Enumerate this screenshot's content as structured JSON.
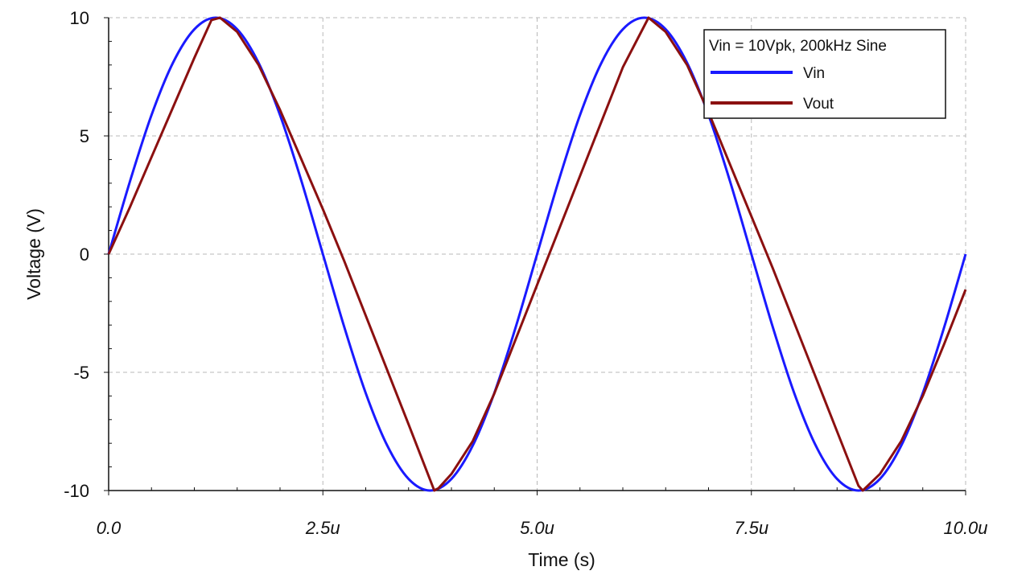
{
  "chart_data": {
    "type": "line",
    "xlabel": "Time (s)",
    "ylabel": "Voltage (V)",
    "xlim": [
      0,
      10
    ],
    "ylim": [
      -10,
      10
    ],
    "x_unit": "us",
    "x_ticks": [
      {
        "value": 0,
        "label": "0.0"
      },
      {
        "value": 2.5,
        "label": "2.5u"
      },
      {
        "value": 5,
        "label": "5.0u"
      },
      {
        "value": 7.5,
        "label": "7.5u"
      },
      {
        "value": 10,
        "label": "10.0u"
      }
    ],
    "y_ticks": [
      {
        "value": 10,
        "label": "10"
      },
      {
        "value": 5,
        "label": "5"
      },
      {
        "value": 0,
        "label": "0"
      },
      {
        "value": -5,
        "label": "-5"
      },
      {
        "value": -10,
        "label": "-10"
      }
    ],
    "grid": true,
    "legend": {
      "position": "top-right",
      "title": "Vin = 10Vpk, 200kHz Sine"
    },
    "series": [
      {
        "name": "Vin",
        "color": "#1a1aff",
        "x": [
          0,
          0.25,
          0.5,
          0.75,
          1.0,
          1.25,
          1.5,
          1.75,
          2.0,
          2.25,
          2.5,
          2.75,
          3.0,
          3.25,
          3.5,
          3.75,
          4.0,
          4.25,
          4.5,
          4.75,
          5.0,
          5.25,
          5.5,
          5.75,
          6.0,
          6.25,
          6.5,
          6.75,
          7.0,
          7.25,
          7.5,
          7.75,
          8.0,
          8.25,
          8.5,
          8.75,
          9.0,
          9.25,
          9.5,
          9.75,
          10.0
        ],
        "values": [
          0,
          3.09,
          5.88,
          8.09,
          9.51,
          10,
          9.51,
          8.09,
          5.88,
          3.09,
          0,
          -3.09,
          -5.88,
          -8.09,
          -9.51,
          -10,
          -9.51,
          -8.09,
          -5.88,
          -3.09,
          0,
          3.09,
          5.88,
          8.09,
          9.51,
          10,
          9.51,
          8.09,
          5.88,
          3.09,
          0,
          -3.09,
          -5.88,
          -8.09,
          -9.51,
          -10,
          -9.51,
          -8.09,
          -5.88,
          -3.09,
          0
        ]
      },
      {
        "name": "Vout",
        "color": "#8b1010",
        "x": [
          0,
          0.25,
          0.5,
          0.75,
          1.0,
          1.2,
          1.3,
          1.5,
          1.75,
          2.0,
          2.25,
          2.5,
          2.75,
          3.0,
          3.25,
          3.5,
          3.8,
          3.85,
          4.0,
          4.25,
          4.5,
          4.75,
          5.0,
          5.25,
          5.5,
          5.75,
          6.0,
          6.3,
          6.5,
          6.75,
          7.0,
          7.25,
          7.5,
          7.75,
          8.0,
          8.25,
          8.5,
          8.75,
          8.8,
          9.0,
          9.25,
          9.5,
          9.75,
          10.0
        ],
        "values": [
          0,
          2.0,
          4.1,
          6.2,
          8.3,
          9.9,
          10,
          9.4,
          8.0,
          6.1,
          4.0,
          1.9,
          -0.3,
          -2.6,
          -4.9,
          -7.2,
          -10,
          -9.9,
          -9.3,
          -7.9,
          -5.9,
          -3.6,
          -1.3,
          1.0,
          3.3,
          5.6,
          7.9,
          10,
          9.4,
          8.0,
          6.0,
          3.8,
          1.6,
          -0.6,
          -2.9,
          -5.2,
          -7.5,
          -9.8,
          -10,
          -9.3,
          -7.9,
          -6.0,
          -3.8,
          -1.5
        ]
      }
    ]
  }
}
